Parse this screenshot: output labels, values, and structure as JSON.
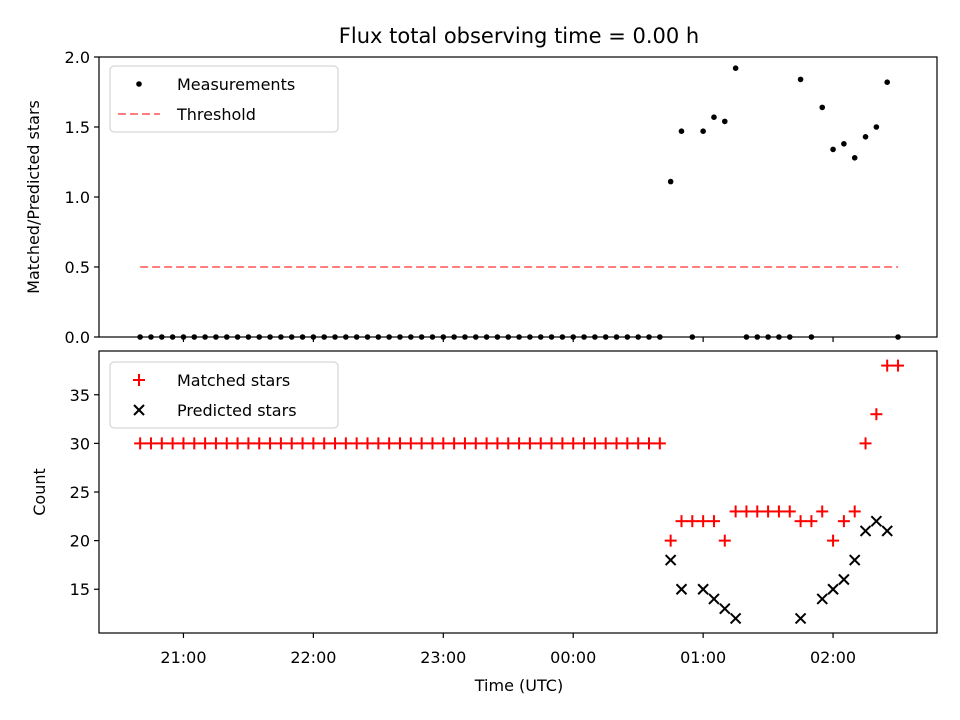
{
  "chart_data": [
    {
      "type": "scatter",
      "title": "Flux total observing time = 0.00 h",
      "xlabel": "",
      "ylabel": "Matched/Predicted stars",
      "xlim_hours": [
        20.35,
        26.8
      ],
      "ylim": [
        0,
        2.0
      ],
      "yticks": [
        0.0,
        0.5,
        1.0,
        1.5,
        2.0
      ],
      "ytick_labels": [
        "0.0",
        "0.5",
        "1.0",
        "1.5",
        "2.0"
      ],
      "legend_position": "upper-left",
      "series": [
        {
          "name": "Measurements",
          "kind": "scatter",
          "color": "#000000",
          "points": [
            [
              "20:40",
              0
            ],
            [
              "20:45",
              0
            ],
            [
              "20:50",
              0
            ],
            [
              "20:55",
              0
            ],
            [
              "21:00",
              0
            ],
            [
              "21:05",
              0
            ],
            [
              "21:10",
              0
            ],
            [
              "21:15",
              0
            ],
            [
              "21:20",
              0
            ],
            [
              "21:25",
              0
            ],
            [
              "21:30",
              0
            ],
            [
              "21:35",
              0
            ],
            [
              "21:40",
              0
            ],
            [
              "21:45",
              0
            ],
            [
              "21:50",
              0
            ],
            [
              "21:55",
              0
            ],
            [
              "22:00",
              0
            ],
            [
              "22:05",
              0
            ],
            [
              "22:10",
              0
            ],
            [
              "22:15",
              0
            ],
            [
              "22:20",
              0
            ],
            [
              "22:25",
              0
            ],
            [
              "22:30",
              0
            ],
            [
              "22:35",
              0
            ],
            [
              "22:40",
              0
            ],
            [
              "22:45",
              0
            ],
            [
              "22:50",
              0
            ],
            [
              "22:55",
              0
            ],
            [
              "23:00",
              0
            ],
            [
              "23:05",
              0
            ],
            [
              "23:10",
              0
            ],
            [
              "23:15",
              0
            ],
            [
              "23:20",
              0
            ],
            [
              "23:25",
              0
            ],
            [
              "23:30",
              0
            ],
            [
              "23:35",
              0
            ],
            [
              "23:40",
              0
            ],
            [
              "23:45",
              0
            ],
            [
              "23:50",
              0
            ],
            [
              "23:55",
              0
            ],
            [
              "00:00",
              0
            ],
            [
              "00:05",
              0
            ],
            [
              "00:10",
              0
            ],
            [
              "00:15",
              0
            ],
            [
              "00:20",
              0
            ],
            [
              "00:25",
              0
            ],
            [
              "00:30",
              0
            ],
            [
              "00:35",
              0
            ],
            [
              "00:40",
              0
            ],
            [
              "00:45",
              1.11
            ],
            [
              "00:50",
              1.47
            ],
            [
              "00:55",
              0
            ],
            [
              "01:00",
              1.47
            ],
            [
              "01:05",
              1.57
            ],
            [
              "01:10",
              1.54
            ],
            [
              "01:15",
              1.92
            ],
            [
              "01:20",
              0
            ],
            [
              "01:25",
              0
            ],
            [
              "01:30",
              0
            ],
            [
              "01:35",
              0
            ],
            [
              "01:40",
              0
            ],
            [
              "01:45",
              1.84
            ],
            [
              "01:50",
              0
            ],
            [
              "01:55",
              1.64
            ],
            [
              "02:00",
              1.34
            ],
            [
              "02:05",
              1.38
            ],
            [
              "02:10",
              1.28
            ],
            [
              "02:15",
              1.43
            ],
            [
              "02:20",
              1.5
            ],
            [
              "02:25",
              1.82
            ],
            [
              "02:30",
              0
            ]
          ]
        },
        {
          "name": "Threshold",
          "kind": "line",
          "style": "dashed",
          "color": "#ff7f7f",
          "points": [
            [
              "20:40",
              0.5
            ],
            [
              "02:30",
              0.5
            ]
          ]
        }
      ]
    },
    {
      "type": "scatter",
      "title": "",
      "xlabel": "Time (UTC)",
      "ylabel": "Count",
      "xlim_hours": [
        20.35,
        26.8
      ],
      "ylim": [
        10.5,
        39.5
      ],
      "yticks": [
        15,
        20,
        25,
        30,
        35
      ],
      "ytick_labels": [
        "15",
        "20",
        "25",
        "30",
        "35"
      ],
      "xticks": [
        "21:00",
        "22:00",
        "23:00",
        "00:00",
        "01:00",
        "02:00"
      ],
      "legend_position": "upper-left",
      "series": [
        {
          "name": "Matched stars",
          "marker": "plus",
          "color": "#ff0000",
          "points": [
            [
              "20:40",
              30
            ],
            [
              "20:45",
              30
            ],
            [
              "20:50",
              30
            ],
            [
              "20:55",
              30
            ],
            [
              "21:00",
              30
            ],
            [
              "21:05",
              30
            ],
            [
              "21:10",
              30
            ],
            [
              "21:15",
              30
            ],
            [
              "21:20",
              30
            ],
            [
              "21:25",
              30
            ],
            [
              "21:30",
              30
            ],
            [
              "21:35",
              30
            ],
            [
              "21:40",
              30
            ],
            [
              "21:45",
              30
            ],
            [
              "21:50",
              30
            ],
            [
              "21:55",
              30
            ],
            [
              "22:00",
              30
            ],
            [
              "22:05",
              30
            ],
            [
              "22:10",
              30
            ],
            [
              "22:15",
              30
            ],
            [
              "22:20",
              30
            ],
            [
              "22:25",
              30
            ],
            [
              "22:30",
              30
            ],
            [
              "22:35",
              30
            ],
            [
              "22:40",
              30
            ],
            [
              "22:45",
              30
            ],
            [
              "22:50",
              30
            ],
            [
              "22:55",
              30
            ],
            [
              "23:00",
              30
            ],
            [
              "23:05",
              30
            ],
            [
              "23:10",
              30
            ],
            [
              "23:15",
              30
            ],
            [
              "23:20",
              30
            ],
            [
              "23:25",
              30
            ],
            [
              "23:30",
              30
            ],
            [
              "23:35",
              30
            ],
            [
              "23:40",
              30
            ],
            [
              "23:45",
              30
            ],
            [
              "23:50",
              30
            ],
            [
              "23:55",
              30
            ],
            [
              "00:00",
              30
            ],
            [
              "00:05",
              30
            ],
            [
              "00:10",
              30
            ],
            [
              "00:15",
              30
            ],
            [
              "00:20",
              30
            ],
            [
              "00:25",
              30
            ],
            [
              "00:30",
              30
            ],
            [
              "00:35",
              30
            ],
            [
              "00:40",
              30
            ],
            [
              "00:45",
              20
            ],
            [
              "00:50",
              22
            ],
            [
              "00:55",
              22
            ],
            [
              "01:00",
              22
            ],
            [
              "01:05",
              22
            ],
            [
              "01:10",
              20
            ],
            [
              "01:15",
              23
            ],
            [
              "01:20",
              23
            ],
            [
              "01:25",
              23
            ],
            [
              "01:30",
              23
            ],
            [
              "01:35",
              23
            ],
            [
              "01:40",
              23
            ],
            [
              "01:45",
              22
            ],
            [
              "01:50",
              22
            ],
            [
              "01:55",
              23
            ],
            [
              "02:00",
              20
            ],
            [
              "02:05",
              22
            ],
            [
              "02:10",
              23
            ],
            [
              "02:15",
              30
            ],
            [
              "02:20",
              33
            ],
            [
              "02:25",
              38
            ],
            [
              "02:30",
              38
            ]
          ]
        },
        {
          "name": "Predicted stars",
          "marker": "x",
          "color": "#000000",
          "points": [
            [
              "00:45",
              18
            ],
            [
              "00:50",
              15
            ],
            [
              "01:00",
              15
            ],
            [
              "01:05",
              14
            ],
            [
              "01:10",
              13
            ],
            [
              "01:15",
              12
            ],
            [
              "01:45",
              12
            ],
            [
              "01:55",
              14
            ],
            [
              "02:00",
              15
            ],
            [
              "02:05",
              16
            ],
            [
              "02:10",
              18
            ],
            [
              "02:15",
              21
            ],
            [
              "02:20",
              22
            ],
            [
              "02:25",
              21
            ]
          ]
        }
      ]
    }
  ]
}
